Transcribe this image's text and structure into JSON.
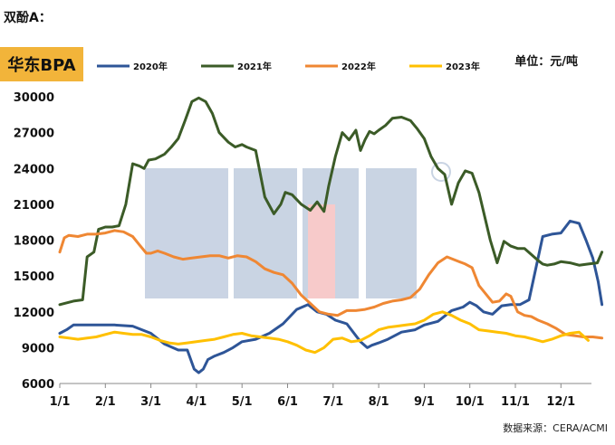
{
  "heading": "双酚A：",
  "product_label": "华东BPA",
  "unit_label": "单位：元/吨",
  "source_note": "数据来源：CERA/ACMI",
  "watermark": "ACMI",
  "chart_data": {
    "type": "line",
    "title": "",
    "xlabel": "",
    "ylabel": "",
    "ylim": [
      6000,
      30000
    ],
    "yticks": [
      6000,
      9000,
      12000,
      15000,
      18000,
      21000,
      24000,
      27000,
      30000
    ],
    "xlim": [
      0,
      12
    ],
    "xticks": [
      "1/1",
      "2/1",
      "3/1",
      "4/1",
      "5/1",
      "6/1",
      "7/1",
      "8/1",
      "9/1",
      "10/1",
      "11/1",
      "12/1"
    ],
    "grid": false,
    "legend_position": "top",
    "series": [
      {
        "name": "2020年",
        "color": "#2e5597",
        "x": [
          0,
          0.15,
          0.3,
          0.8,
          1.2,
          1.6,
          2.0,
          2.3,
          2.6,
          2.8,
          2.95,
          3.05,
          3.15,
          3.25,
          3.4,
          3.6,
          3.8,
          4.0,
          4.3,
          4.6,
          4.9,
          5.2,
          5.45,
          5.65,
          5.85,
          6.05,
          6.3,
          6.6,
          6.75,
          6.85,
          7.0,
          7.2,
          7.5,
          7.8,
          8.0,
          8.3,
          8.6,
          8.85,
          9.0,
          9.15,
          9.3,
          9.5,
          9.7,
          9.9,
          10.1,
          10.3,
          10.6,
          10.8,
          11.0,
          11.2,
          11.4,
          11.55,
          11.7,
          11.82,
          11.9
        ],
        "y": [
          10200,
          10500,
          10900,
          10900,
          10900,
          10800,
          10200,
          9300,
          8800,
          8800,
          7200,
          6900,
          7200,
          8000,
          8300,
          8600,
          9000,
          9500,
          9700,
          10200,
          11000,
          12200,
          12600,
          12000,
          11800,
          11300,
          11000,
          9500,
          9000,
          9200,
          9400,
          9700,
          10300,
          10500,
          10900,
          11200,
          12100,
          12400,
          12800,
          12500,
          12000,
          11800,
          12500,
          12600,
          12600,
          13000,
          18300,
          18500,
          18600,
          19600,
          19400,
          18000,
          16500,
          14500,
          12600
        ]
      },
      {
        "name": "2021年",
        "color": "#3b5b27",
        "x": [
          0,
          0.3,
          0.5,
          0.6,
          0.75,
          0.85,
          1.0,
          1.15,
          1.3,
          1.45,
          1.6,
          1.75,
          1.85,
          1.95,
          2.1,
          2.3,
          2.45,
          2.6,
          2.75,
          2.9,
          3.05,
          3.2,
          3.35,
          3.5,
          3.6,
          3.7,
          3.85,
          4.0,
          4.1,
          4.3,
          4.5,
          4.7,
          4.85,
          4.95,
          5.1,
          5.3,
          5.5,
          5.65,
          5.8,
          5.9,
          6.05,
          6.2,
          6.35,
          6.5,
          6.6,
          6.7,
          6.8,
          6.9,
          7.0,
          7.15,
          7.3,
          7.5,
          7.7,
          7.85,
          8.0,
          8.15,
          8.3,
          8.45,
          8.6,
          8.75,
          8.9,
          9.05,
          9.2,
          9.35,
          9.45,
          9.6,
          9.75,
          9.9,
          10.05,
          10.2,
          10.35,
          10.5,
          10.6,
          10.7,
          10.85,
          11.0,
          11.2,
          11.4,
          11.6,
          11.8,
          11.9
        ],
        "y": [
          12600,
          12900,
          13000,
          16600,
          17000,
          18900,
          19100,
          19100,
          19200,
          21000,
          24400,
          24200,
          24000,
          24700,
          24800,
          25200,
          25800,
          26500,
          28000,
          29600,
          29900,
          29600,
          28600,
          27000,
          26600,
          26200,
          25800,
          26000,
          25800,
          25500,
          21600,
          20200,
          21000,
          22000,
          21800,
          21000,
          20500,
          21200,
          20400,
          22500,
          25000,
          27000,
          26400,
          27200,
          25500,
          26400,
          27100,
          26900,
          27200,
          27600,
          28200,
          28300,
          28000,
          27300,
          26500,
          25000,
          24000,
          23500,
          21000,
          22800,
          23800,
          23600,
          22000,
          19600,
          18000,
          16100,
          17900,
          17500,
          17300,
          17300,
          16800,
          16300,
          16000,
          15900,
          16000,
          16200,
          16100,
          15900,
          16000,
          16100,
          17000
        ]
      },
      {
        "name": "2022年",
        "color": "#ef8733",
        "x": [
          0,
          0.1,
          0.2,
          0.4,
          0.6,
          0.8,
          1.0,
          1.2,
          1.4,
          1.6,
          1.75,
          1.9,
          2.0,
          2.15,
          2.3,
          2.5,
          2.7,
          2.9,
          3.1,
          3.3,
          3.5,
          3.7,
          3.9,
          4.1,
          4.3,
          4.5,
          4.7,
          4.9,
          5.1,
          5.3,
          5.5,
          5.7,
          5.9,
          6.1,
          6.3,
          6.5,
          6.7,
          6.9,
          7.1,
          7.3,
          7.5,
          7.7,
          7.9,
          8.1,
          8.3,
          8.5,
          8.7,
          8.9,
          9.05,
          9.2,
          9.35,
          9.5,
          9.65,
          9.8,
          9.9,
          10.05,
          10.2,
          10.35,
          10.5,
          10.7,
          10.9,
          11.1,
          11.3,
          11.5,
          11.7,
          11.9
        ],
        "y": [
          17000,
          18200,
          18400,
          18300,
          18500,
          18500,
          18600,
          18800,
          18700,
          18300,
          17600,
          16900,
          16900,
          17100,
          16900,
          16600,
          16400,
          16500,
          16600,
          16700,
          16700,
          16500,
          16700,
          16600,
          16200,
          15600,
          15300,
          15100,
          14400,
          13400,
          12700,
          12000,
          11800,
          11700,
          12100,
          12100,
          12200,
          12400,
          12700,
          12900,
          13000,
          13200,
          13900,
          15100,
          16100,
          16600,
          16300,
          16000,
          15700,
          14200,
          13500,
          12800,
          12900,
          13500,
          13300,
          12000,
          11700,
          11600,
          11300,
          11000,
          10600,
          10100,
          10000,
          9900,
          9900,
          9800
        ]
      },
      {
        "name": "2023年",
        "color": "#ffc000",
        "x": [
          0,
          0.2,
          0.4,
          0.6,
          0.8,
          1.0,
          1.2,
          1.4,
          1.6,
          1.8,
          2.0,
          2.2,
          2.4,
          2.6,
          2.8,
          3.0,
          3.2,
          3.4,
          3.6,
          3.8,
          4.0,
          4.2,
          4.4,
          4.6,
          4.8,
          5.0,
          5.2,
          5.4,
          5.6,
          5.8,
          6.0,
          6.2,
          6.4,
          6.6,
          6.8,
          7.0,
          7.2,
          7.4,
          7.6,
          7.8,
          8.0,
          8.2,
          8.4,
          8.6,
          8.8,
          9.0,
          9.2,
          9.4,
          9.6,
          9.8,
          10.0,
          10.2,
          10.4,
          10.6,
          10.8,
          11.0,
          11.2,
          11.4,
          11.6
        ],
        "y": [
          9900,
          9800,
          9700,
          9800,
          9900,
          10100,
          10300,
          10200,
          10100,
          10100,
          9900,
          9600,
          9400,
          9300,
          9400,
          9500,
          9600,
          9700,
          9900,
          10100,
          10200,
          10000,
          9900,
          9800,
          9700,
          9500,
          9200,
          8800,
          8600,
          9000,
          9700,
          9800,
          9500,
          9600,
          10000,
          10500,
          10700,
          10800,
          10900,
          11000,
          11300,
          11800,
          12000,
          11700,
          11300,
          11000,
          10500,
          10400,
          10300,
          10200,
          10000,
          9900,
          9700,
          9500,
          9700,
          10000,
          10200,
          10300,
          9600
        ]
      }
    ]
  }
}
